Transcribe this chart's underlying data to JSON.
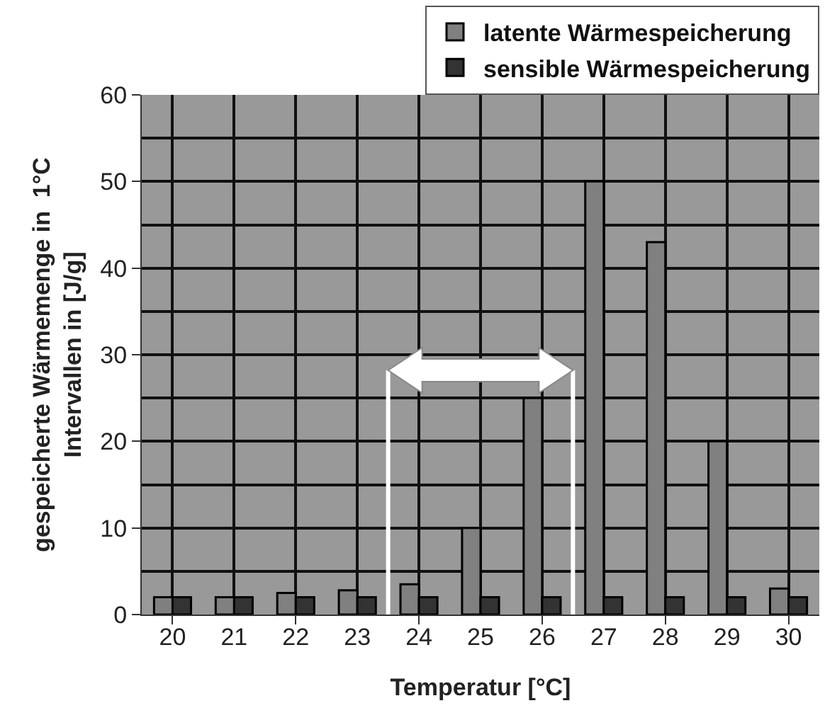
{
  "chart_data": {
    "type": "bar",
    "xlabel": "Temperatur [°C]",
    "ylabel": "gespeicherte Wärmemenge in  1°C\nIntervallen in [J/g]",
    "x": [
      20,
      21,
      22,
      23,
      24,
      25,
      26,
      27,
      28,
      29,
      30
    ],
    "series": [
      {
        "name": "latente Wärmespeicherung",
        "color": "#808080",
        "values": [
          2,
          2,
          2.5,
          2.8,
          3.5,
          10,
          25,
          50,
          43,
          20,
          3
        ]
      },
      {
        "name": "sensible Wärmespeicherung",
        "color": "#333333",
        "values": [
          2,
          2,
          2,
          2,
          2,
          2,
          2,
          2,
          2,
          2,
          2
        ]
      }
    ],
    "xlim": [
      19.5,
      30.5
    ],
    "xticks": [
      20,
      21,
      22,
      23,
      24,
      25,
      26,
      27,
      28,
      29,
      30
    ],
    "ylim": [
      0,
      60
    ],
    "yticks": [
      0,
      10,
      20,
      30,
      40,
      50,
      60
    ],
    "ref_lines": [
      {
        "axis": "x",
        "value": 23.5,
        "color": "#ffffff"
      },
      {
        "axis": "x",
        "value": 26.5,
        "color": "#ffffff"
      }
    ],
    "grid": true,
    "legend": "top right"
  }
}
